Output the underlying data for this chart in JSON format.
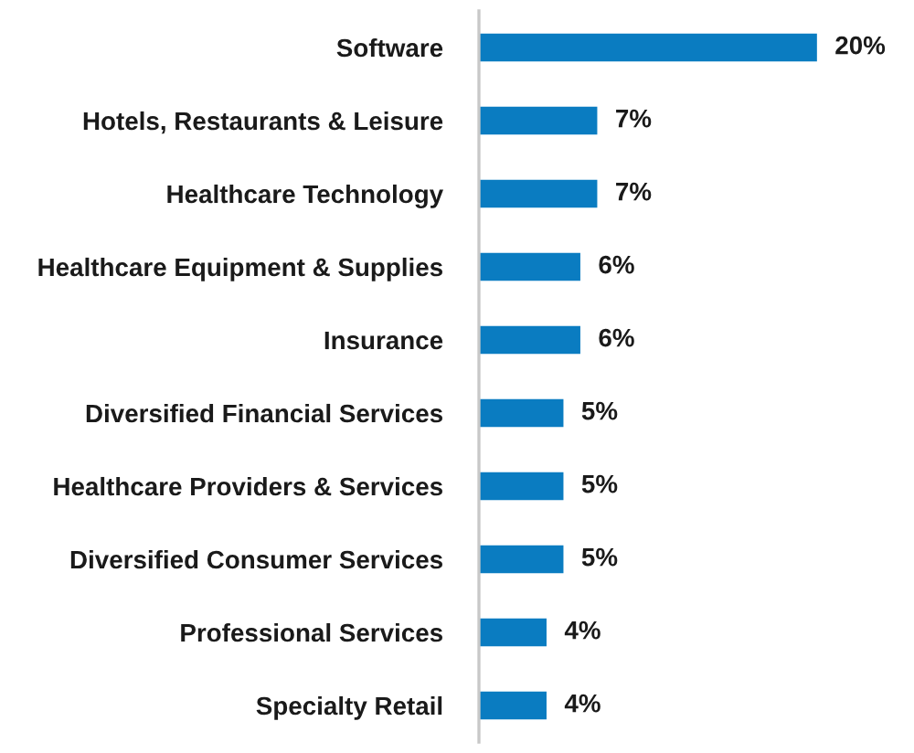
{
  "chart_data": {
    "type": "bar",
    "orientation": "horizontal",
    "categories": [
      "Software",
      "Hotels, Restaurants & Leisure",
      "Healthcare Technology",
      "Healthcare Equipment & Supplies",
      "Insurance",
      "Diversified Financial Services",
      "Healthcare Providers & Services",
      "Diversified Consumer Services",
      "Professional Services",
      "Specialty Retail"
    ],
    "values": [
      20,
      7,
      7,
      6,
      6,
      5,
      5,
      5,
      4,
      4
    ],
    "value_labels": [
      "20%",
      "7%",
      "7%",
      "6%",
      "6%",
      "5%",
      "5%",
      "5%",
      "4%",
      "4%"
    ],
    "color": "#0a7cc1",
    "tick_labels": "y"
  }
}
